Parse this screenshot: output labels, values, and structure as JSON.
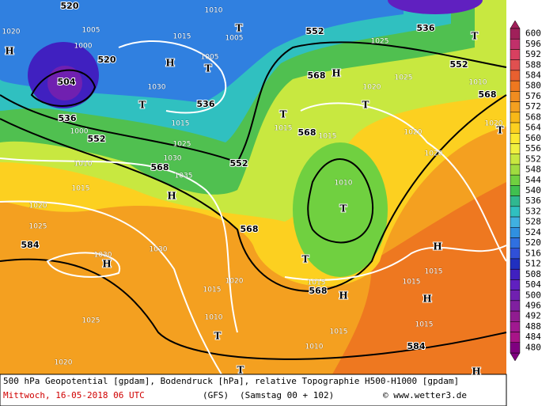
{
  "legend": {
    "values": [
      600,
      596,
      592,
      588,
      584,
      580,
      576,
      572,
      568,
      564,
      560,
      556,
      552,
      548,
      544,
      540,
      536,
      532,
      528,
      524,
      520,
      516,
      512,
      508,
      504,
      500,
      496,
      492,
      488,
      484,
      480
    ],
    "colors": [
      "#a0205a",
      "#c0306a",
      "#d84060",
      "#e05050",
      "#e86030",
      "#ee7820",
      "#f08c20",
      "#f4a020",
      "#f8b818",
      "#fcd020",
      "#fce830",
      "#f0f040",
      "#c8e840",
      "#a0dc40",
      "#70d040",
      "#40c050",
      "#30b890",
      "#30c0c0",
      "#40b0e0",
      "#3090e0",
      "#3070e0",
      "#3050d8",
      "#2030c0",
      "#4020c0",
      "#6020c0",
      "#7020b0",
      "#8020a0",
      "#901c90",
      "#a01890",
      "#a81488",
      "#800080"
    ]
  },
  "map_labels": [
    "520",
    "1020",
    "H",
    "1005",
    "1000",
    "520",
    "504",
    "536",
    "1000",
    "552",
    "1010",
    "1015",
    "1020",
    "1025",
    "584",
    "1030",
    "H",
    "1025",
    "1020",
    "1010",
    "1015",
    "H",
    "1005",
    "T",
    "1030",
    "T",
    "1015",
    "1025",
    "1030",
    "568",
    "1035",
    "H",
    "552",
    "536",
    "T",
    "1005",
    "552",
    "1025",
    "536",
    "T",
    "552",
    "1025",
    "568",
    "H",
    "1020",
    "T",
    "568",
    "1010",
    "T",
    "1015",
    "568",
    "1015",
    "1020",
    "1020",
    "1010",
    "T",
    "568",
    "1030",
    "T",
    "568",
    "1015",
    "H",
    "H",
    "1015",
    "1015",
    "H",
    "1020",
    "1015",
    "1010",
    "T",
    "1015",
    "1010",
    "584",
    "1015",
    "H",
    "T",
    "1020",
    "T"
  ],
  "footer": {
    "line1": "500 hPa Geopotential [gpdam], Bodendruck [hPa], relative Topographie H500-H1000 [gpdam]",
    "date": "Mittwoch, 16-05-2018  06 UTC",
    "model": "(GFS)",
    "run": "(Samstag 00 + 102)",
    "credit": "© www.wetter3.de"
  }
}
